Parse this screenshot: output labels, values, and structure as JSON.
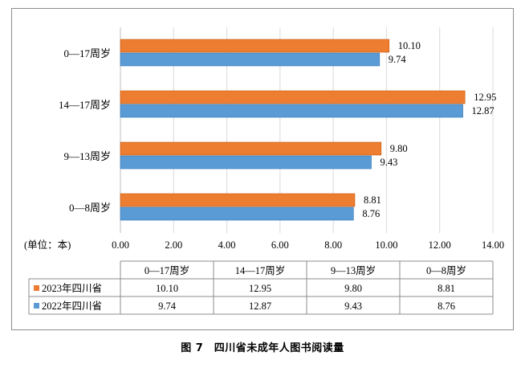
{
  "caption": "图 7　四川省未成年人图书阅读量",
  "chart_data": {
    "type": "bar",
    "orientation": "horizontal",
    "categories": [
      "0—17周岁",
      "14—17周岁",
      "9—13周岁",
      "0—8周岁"
    ],
    "series": [
      {
        "name": "2023年四川省",
        "values": [
          10.1,
          12.95,
          9.8,
          8.81
        ],
        "labels": [
          "10.10",
          "12.95",
          "9.80",
          "8.81"
        ],
        "color": "#ED7D31"
      },
      {
        "name": "2022年四川省",
        "values": [
          9.74,
          12.87,
          9.43,
          8.76
        ],
        "labels": [
          "9.74",
          "12.87",
          "9.43",
          "8.76"
        ],
        "color": "#5B9BD5"
      }
    ],
    "xlim": [
      0,
      14
    ],
    "xticks": [
      "0.00",
      "2.00",
      "4.00",
      "6.00",
      "8.00",
      "10.00",
      "12.00",
      "14.00"
    ],
    "unit_label": "(单位：本)",
    "grid": true,
    "data_table": true
  }
}
